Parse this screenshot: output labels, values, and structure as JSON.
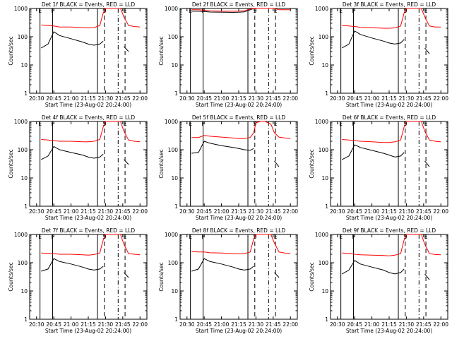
{
  "colors": {
    "events": "#000000",
    "lld": "#ff0000",
    "axes": "#000000",
    "background": "#ffffff"
  },
  "ylabel": "Counts/sec",
  "xlabel": "Start Time (23-Aug-02 20:24:00)",
  "x_ticks": [
    "20:30",
    "20:45",
    "21:00",
    "21:15",
    "21:30",
    "21:45",
    "22:00"
  ],
  "y_ticks": [
    "1",
    "10",
    "100",
    "1000"
  ],
  "marker_letters": {
    "E": "E",
    "F": "F",
    "S": "S"
  },
  "chart_data": [
    {
      "type": "line",
      "title": "Det 1f BLACK = Events, RED = LLD",
      "xlabel": "Start Time (23-Aug-02 20:24:00)",
      "ylabel": "Counts/sec",
      "yscale": "log",
      "ylim": [
        1,
        1000
      ],
      "x": [
        "20:34",
        "20:40",
        "20:45",
        "20:50",
        "21:00",
        "21:10",
        "21:15",
        "21:20",
        "21:25",
        "21:28",
        "21:30",
        "21:34",
        "21:38",
        "21:43",
        "21:46",
        "21:50",
        "21:55",
        "22:00"
      ],
      "series": [
        {
          "color": "#000000",
          "values": [
            40,
            55,
            150,
            110,
            85,
            65,
            55,
            50,
            55,
            70,
            null,
            null,
            null,
            null,
            45,
            30,
            null,
            null
          ]
        },
        {
          "color": "#ff0000",
          "values": [
            260,
            250,
            240,
            220,
            220,
            210,
            205,
            210,
            250,
            700,
            1000,
            1000,
            1000,
            1000,
            500,
            250,
            230,
            220
          ]
        }
      ]
    },
    {
      "type": "line",
      "title": "Det 2f BLACK = Events, RED = LLD",
      "xlabel": "Start Time (23-Aug-02 20:24:00)",
      "ylabel": "Counts/sec",
      "yscale": "log",
      "ylim": [
        1,
        1000
      ],
      "x": [
        "20:34",
        "20:40",
        "20:45",
        "20:50",
        "21:00",
        "21:10",
        "21:15",
        "21:20",
        "21:25",
        "21:28",
        "21:30",
        "21:34",
        "21:38",
        "21:43",
        "21:46",
        "21:50",
        "21:55",
        "22:00"
      ],
      "series": [
        {
          "color": "#000000",
          "values": [
            800,
            800,
            780,
            750,
            740,
            730,
            740,
            760,
            900,
            1000,
            null,
            null,
            null,
            null,
            null,
            null,
            null,
            null
          ]
        },
        {
          "color": "#ff0000",
          "values": [
            900,
            900,
            870,
            820,
            800,
            800,
            810,
            830,
            950,
            1000,
            1000,
            1000,
            1000,
            1000,
            1000,
            900,
            900,
            900
          ]
        }
      ]
    },
    {
      "type": "line",
      "title": "Det 3f BLACK = Events, RED = LLD",
      "xlabel": "Start Time (23-Aug-02 20:24:00)",
      "ylabel": "Counts/sec",
      "yscale": "log",
      "ylim": [
        1,
        1000
      ],
      "x": [
        "20:34",
        "20:40",
        "20:45",
        "20:50",
        "21:00",
        "21:10",
        "21:15",
        "21:20",
        "21:25",
        "21:28",
        "21:30",
        "21:34",
        "21:38",
        "21:43",
        "21:46",
        "21:50",
        "21:55",
        "22:00"
      ],
      "series": [
        {
          "color": "#000000",
          "values": [
            40,
            55,
            160,
            120,
            90,
            70,
            60,
            55,
            60,
            80,
            null,
            null,
            null,
            null,
            40,
            25,
            null,
            null
          ]
        },
        {
          "color": "#ff0000",
          "values": [
            250,
            240,
            230,
            215,
            210,
            200,
            200,
            205,
            240,
            700,
            1000,
            1000,
            1000,
            1000,
            500,
            240,
            220,
            220
          ]
        }
      ]
    },
    {
      "type": "line",
      "title": "Det 4f BLACK = Events, RED = LLD",
      "xlabel": "Start Time (23-Aug-02 20:24:00)",
      "ylabel": "Counts/sec",
      "yscale": "log",
      "ylim": [
        1,
        1000
      ],
      "x": [
        "20:34",
        "20:40",
        "20:45",
        "20:50",
        "21:00",
        "21:10",
        "21:15",
        "21:20",
        "21:25",
        "21:28",
        "21:30",
        "21:34",
        "21:38",
        "21:43",
        "21:46",
        "21:50",
        "21:55",
        "22:00"
      ],
      "series": [
        {
          "color": "#000000",
          "values": [
            45,
            60,
            130,
            100,
            80,
            65,
            55,
            50,
            55,
            70,
            null,
            null,
            null,
            null,
            45,
            30,
            null,
            null
          ]
        },
        {
          "color": "#ff0000",
          "values": [
            230,
            220,
            210,
            200,
            200,
            190,
            190,
            200,
            230,
            650,
            1000,
            1000,
            1000,
            1000,
            450,
            220,
            200,
            190
          ]
        }
      ]
    },
    {
      "type": "line",
      "title": "Det 5f BLACK = Events, RED = LLD",
      "xlabel": "Start Time (23-Aug-02 20:24:00)",
      "ylabel": "Counts/sec",
      "yscale": "log",
      "ylim": [
        1,
        1000
      ],
      "x": [
        "20:34",
        "20:40",
        "20:45",
        "20:50",
        "21:00",
        "21:10",
        "21:15",
        "21:20",
        "21:25",
        "21:28",
        "21:30",
        "21:34",
        "21:38",
        "21:43",
        "21:46",
        "21:50",
        "21:55",
        "22:00"
      ],
      "series": [
        {
          "color": "#000000",
          "values": [
            75,
            80,
            200,
            170,
            140,
            120,
            110,
            100,
            95,
            110,
            null,
            null,
            null,
            null,
            40,
            25,
            null,
            null
          ]
        },
        {
          "color": "#ff0000",
          "values": [
            270,
            270,
            320,
            300,
            280,
            260,
            250,
            250,
            270,
            400,
            900,
            1000,
            1000,
            800,
            400,
            280,
            260,
            250
          ]
        }
      ]
    },
    {
      "type": "line",
      "title": "Det 6f BLACK = Events, RED = LLD",
      "xlabel": "Start Time (23-Aug-02 20:24:00)",
      "ylabel": "Counts/sec",
      "yscale": "log",
      "ylim": [
        1,
        1000
      ],
      "x": [
        "20:34",
        "20:40",
        "20:45",
        "20:50",
        "21:00",
        "21:10",
        "21:15",
        "21:20",
        "21:25",
        "21:28",
        "21:30",
        "21:34",
        "21:38",
        "21:43",
        "21:46",
        "21:50",
        "21:55",
        "22:00"
      ],
      "series": [
        {
          "color": "#000000",
          "values": [
            45,
            60,
            150,
            120,
            95,
            75,
            65,
            55,
            60,
            80,
            null,
            null,
            null,
            null,
            40,
            25,
            null,
            null
          ]
        },
        {
          "color": "#ff0000",
          "values": [
            230,
            220,
            210,
            200,
            190,
            180,
            180,
            190,
            220,
            650,
            1000,
            1000,
            1000,
            1000,
            450,
            220,
            200,
            190
          ]
        }
      ]
    },
    {
      "type": "line",
      "title": "Det 7f BLACK = Events, RED = LLD",
      "xlabel": "Start Time (23-Aug-02 20:24:00)",
      "ylabel": "Counts/sec",
      "yscale": "log",
      "ylim": [
        1,
        1000
      ],
      "x": [
        "20:34",
        "20:40",
        "20:45",
        "20:50",
        "21:00",
        "21:10",
        "21:15",
        "21:20",
        "21:25",
        "21:28",
        "21:30",
        "21:34",
        "21:38",
        "21:43",
        "21:46",
        "21:50",
        "21:55",
        "22:00"
      ],
      "series": [
        {
          "color": "#000000",
          "values": [
            50,
            60,
            140,
            110,
            90,
            70,
            60,
            55,
            60,
            75,
            null,
            null,
            null,
            null,
            45,
            30,
            null,
            null
          ]
        },
        {
          "color": "#ff0000",
          "values": [
            220,
            215,
            210,
            200,
            200,
            190,
            185,
            195,
            220,
            650,
            1000,
            1000,
            1000,
            1000,
            450,
            210,
            200,
            190
          ]
        }
      ]
    },
    {
      "type": "line",
      "title": "Det 8f BLACK = Events, RED = LLD",
      "xlabel": "Start Time (23-Aug-02 20:24:00)",
      "ylabel": "Counts/sec",
      "yscale": "log",
      "ylim": [
        1,
        1000
      ],
      "x": [
        "20:34",
        "20:40",
        "20:45",
        "20:50",
        "21:00",
        "21:10",
        "21:15",
        "21:20",
        "21:25",
        "21:28",
        "21:30",
        "21:34",
        "21:38",
        "21:43",
        "21:46",
        "21:50",
        "21:55",
        "22:00"
      ],
      "series": [
        {
          "color": "#000000",
          "values": [
            50,
            60,
            140,
            110,
            90,
            70,
            60,
            55,
            60,
            75,
            null,
            null,
            null,
            null,
            45,
            30,
            null,
            null
          ]
        },
        {
          "color": "#ff0000",
          "values": [
            250,
            240,
            240,
            225,
            220,
            210,
            205,
            210,
            240,
            700,
            1000,
            1000,
            1000,
            1000,
            500,
            240,
            220,
            210
          ]
        }
      ]
    },
    {
      "type": "line",
      "title": "Det 9f BLACK = Events, RED = LLD",
      "xlabel": "Start Time (23-Aug-02 20:24:00)",
      "ylabel": "Counts/sec",
      "yscale": "log",
      "ylim": [
        1,
        1000
      ],
      "x": [
        "20:34",
        "20:40",
        "20:45",
        "20:50",
        "21:00",
        "21:10",
        "21:15",
        "21:20",
        "21:25",
        "21:28",
        "21:30",
        "21:34",
        "21:38",
        "21:43",
        "21:46",
        "21:50",
        "21:55",
        "22:00"
      ],
      "series": [
        {
          "color": "#000000",
          "values": [
            40,
            55,
            120,
            90,
            70,
            55,
            45,
            40,
            45,
            60,
            null,
            null,
            null,
            null,
            40,
            25,
            null,
            null
          ]
        },
        {
          "color": "#ff0000",
          "values": [
            220,
            215,
            200,
            190,
            185,
            180,
            175,
            185,
            210,
            650,
            1000,
            1000,
            1000,
            1000,
            450,
            210,
            195,
            190
          ]
        }
      ]
    }
  ]
}
